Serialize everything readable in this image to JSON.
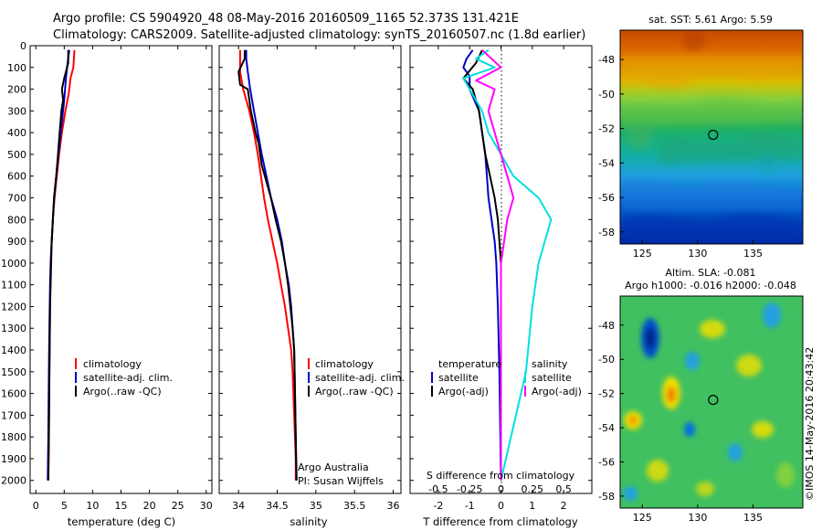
{
  "header": {
    "line1": "Argo profile: CS 5904920_48 08-May-2016 20160509_1165 52.373S 131.421E",
    "line2": "Climatology: CARS2009. Satellite-adjusted climatology: synTS_20160507.nc (1.8d earlier)"
  },
  "colors": {
    "climatology": "#ff0000",
    "satellite": "#0000cc",
    "argo": "#000000",
    "sat_salinity": "#00e0e0",
    "argo_salinity": "#ff00ff"
  },
  "depth_ticks": [
    "0",
    "100",
    "200",
    "300",
    "400",
    "500",
    "600",
    "700",
    "800",
    "900",
    "1000",
    "1100",
    "1200",
    "1300",
    "1400",
    "1500",
    "1600",
    "1700",
    "1800",
    "1900",
    "2000"
  ],
  "chart_data": [
    {
      "type": "line",
      "xlabel": "temperature (deg C)",
      "xlim": [
        -1,
        31
      ],
      "ylim": [
        2060,
        0
      ],
      "x_ticks": [
        "0",
        "5",
        "10",
        "15",
        "20",
        "25",
        "30"
      ],
      "legend": {
        "items": [
          "climatology",
          "satellite-adj. clim.",
          "Argo(..raw -QC)"
        ]
      },
      "series": [
        {
          "name": "climatology",
          "points": [
            [
              6.8,
              20
            ],
            [
              6.6,
              100
            ],
            [
              6.1,
              150
            ],
            [
              5.8,
              220
            ],
            [
              5.2,
              300
            ],
            [
              4.6,
              400
            ],
            [
              4.1,
              500
            ],
            [
              3.7,
              600
            ],
            [
              3.3,
              700
            ],
            [
              3.0,
              800
            ],
            [
              2.8,
              900
            ],
            [
              2.6,
              1000
            ],
            [
              2.5,
              1200
            ],
            [
              2.4,
              1500
            ],
            [
              2.3,
              1800
            ],
            [
              2.2,
              2000
            ]
          ]
        },
        {
          "name": "satellite-adj. clim.",
          "points": [
            [
              5.9,
              20
            ],
            [
              5.6,
              80
            ],
            [
              5.3,
              150
            ],
            [
              5.0,
              250
            ],
            [
              4.6,
              350
            ],
            [
              4.2,
              450
            ],
            [
              3.8,
              550
            ],
            [
              3.4,
              650
            ],
            [
              3.1,
              750
            ],
            [
              2.9,
              850
            ],
            [
              2.7,
              950
            ],
            [
              2.5,
              1100
            ],
            [
              2.4,
              1300
            ],
            [
              2.3,
              1500
            ],
            [
              2.2,
              1800
            ],
            [
              2.1,
              2000
            ]
          ]
        },
        {
          "name": "Argo(..raw -QC)",
          "points": [
            [
              5.7,
              20
            ],
            [
              5.7,
              80
            ],
            [
              5.0,
              150
            ],
            [
              4.6,
              200
            ],
            [
              4.8,
              250
            ],
            [
              4.5,
              300
            ],
            [
              4.2,
              400
            ],
            [
              3.9,
              500
            ],
            [
              3.6,
              600
            ],
            [
              3.2,
              700
            ],
            [
              3.0,
              800
            ],
            [
              2.8,
              900
            ],
            [
              2.7,
              1000
            ],
            [
              2.5,
              1200
            ],
            [
              2.4,
              1500
            ],
            [
              2.3,
              1800
            ],
            [
              2.2,
              2000
            ]
          ]
        }
      ]
    },
    {
      "type": "line",
      "xlabel": "salinity",
      "xlim": [
        33.75,
        36.1
      ],
      "ylim": [
        2060,
        0
      ],
      "x_ticks": [
        "34",
        "34.5",
        "35",
        "35.5",
        "36"
      ],
      "legend": {
        "items": [
          "climatology",
          "satellite-adj. clim.",
          "Argo(..raw -QC)"
        ]
      },
      "annotation": [
        "Argo Australia",
        "PI: Susan Wijffels"
      ],
      "series": [
        {
          "name": "climatology",
          "points": [
            [
              34.02,
              20
            ],
            [
              34.02,
              120
            ],
            [
              34.06,
              200
            ],
            [
              34.14,
              300
            ],
            [
              34.2,
              400
            ],
            [
              34.25,
              500
            ],
            [
              34.29,
              600
            ],
            [
              34.33,
              700
            ],
            [
              34.38,
              800
            ],
            [
              34.44,
              900
            ],
            [
              34.5,
              1000
            ],
            [
              34.55,
              1100
            ],
            [
              34.6,
              1200
            ],
            [
              34.64,
              1300
            ],
            [
              34.68,
              1400
            ],
            [
              34.7,
              1500
            ],
            [
              34.72,
              1700
            ],
            [
              34.74,
              1900
            ],
            [
              34.74,
              2000
            ]
          ]
        },
        {
          "name": "satellite-adj. clim.",
          "points": [
            [
              34.1,
              20
            ],
            [
              34.1,
              60
            ],
            [
              34.12,
              120
            ],
            [
              34.15,
              200
            ],
            [
              34.2,
              300
            ],
            [
              34.25,
              400
            ],
            [
              34.3,
              500
            ],
            [
              34.36,
              600
            ],
            [
              34.42,
              700
            ],
            [
              34.5,
              800
            ],
            [
              34.56,
              900
            ],
            [
              34.6,
              1000
            ],
            [
              34.65,
              1100
            ],
            [
              34.68,
              1200
            ],
            [
              34.7,
              1300
            ],
            [
              34.72,
              1400
            ],
            [
              34.73,
              1600
            ],
            [
              34.74,
              1800
            ],
            [
              34.75,
              2000
            ]
          ]
        },
        {
          "name": "Argo(..raw -QC)",
          "points": [
            [
              34.08,
              20
            ],
            [
              34.08,
              60
            ],
            [
              34.0,
              120
            ],
            [
              34.02,
              180
            ],
            [
              34.12,
              200
            ],
            [
              34.16,
              300
            ],
            [
              34.22,
              400
            ],
            [
              34.26,
              450
            ],
            [
              34.28,
              500
            ],
            [
              34.3,
              550
            ],
            [
              34.34,
              600
            ],
            [
              34.38,
              650
            ],
            [
              34.42,
              700
            ],
            [
              34.48,
              800
            ],
            [
              34.55,
              900
            ],
            [
              34.6,
              1000
            ],
            [
              34.64,
              1100
            ],
            [
              34.67,
              1200
            ],
            [
              34.7,
              1300
            ],
            [
              34.72,
              1400
            ],
            [
              34.73,
              1600
            ],
            [
              34.74,
              1800
            ],
            [
              34.75,
              2000
            ]
          ]
        }
      ]
    },
    {
      "type": "line",
      "xlabel": "T difference from climatology",
      "top_label": "S difference from climatology",
      "xlim": [
        -2.9,
        2.9
      ],
      "ylim": [
        2060,
        0
      ],
      "x_ticks": [
        "-2",
        "-1",
        "0",
        "1",
        "2"
      ],
      "top_ticks": [
        "-0.5",
        "-0.25",
        "0",
        "0.25",
        "0.5"
      ],
      "legend": {
        "temperature_title": "temperature",
        "salinity_title": "salinity",
        "items": [
          "satellite",
          "Argo(-adj)",
          "satellite",
          "Argo(-adj)"
        ]
      },
      "series": [
        {
          "name": "satellite",
          "points": [
            [
              -0.9,
              20
            ],
            [
              -1.1,
              60
            ],
            [
              -1.2,
              100
            ],
            [
              -1.0,
              140
            ],
            [
              -1.0,
              200
            ],
            [
              -0.7,
              300
            ],
            [
              -0.6,
              400
            ],
            [
              -0.5,
              500
            ],
            [
              -0.45,
              600
            ],
            [
              -0.4,
              700
            ],
            [
              -0.3,
              800
            ],
            [
              -0.2,
              900
            ],
            [
              -0.15,
              1000
            ],
            [
              -0.1,
              1200
            ],
            [
              -0.05,
              1500
            ],
            [
              0.0,
              2000
            ]
          ]
        },
        {
          "name": "Argo(-adj)",
          "points": [
            [
              -0.6,
              20
            ],
            [
              -0.8,
              80
            ],
            [
              -1.2,
              150
            ],
            [
              -0.9,
              200
            ],
            [
              -0.8,
              250
            ],
            [
              -0.7,
              300
            ],
            [
              -0.6,
              400
            ],
            [
              -0.5,
              500
            ],
            [
              -0.35,
              600
            ],
            [
              -0.2,
              700
            ],
            [
              -0.1,
              800
            ],
            [
              -0.05,
              900
            ],
            [
              0.0,
              1000
            ],
            [
              0.0,
              1500
            ],
            [
              0.0,
              2000
            ]
          ]
        },
        {
          "name": "satellite",
          "points": [
            [
              -0.1,
              20
            ],
            [
              -0.2,
              60
            ],
            [
              -0.05,
              100
            ],
            [
              -0.3,
              150
            ],
            [
              -0.25,
              200
            ],
            [
              -0.15,
              300
            ],
            [
              -0.1,
              400
            ],
            [
              0.0,
              500
            ],
            [
              0.1,
              600
            ],
            [
              0.3,
              700
            ],
            [
              0.4,
              800
            ],
            [
              0.35,
              900
            ],
            [
              0.3,
              1000
            ],
            [
              0.25,
              1200
            ],
            [
              0.2,
              1500
            ],
            [
              0.0,
              2000
            ]
          ]
        },
        {
          "name": "Argo(-adj)",
          "points": [
            [
              -0.15,
              20
            ],
            [
              0.0,
              100
            ],
            [
              -0.2,
              160
            ],
            [
              -0.05,
              200
            ],
            [
              -0.1,
              300
            ],
            [
              -0.05,
              400
            ],
            [
              0.0,
              500
            ],
            [
              0.05,
              600
            ],
            [
              0.1,
              700
            ],
            [
              0.05,
              800
            ],
            [
              0.0,
              1000
            ],
            [
              0.0,
              2000
            ]
          ]
        }
      ]
    },
    {
      "type": "heatmap",
      "title": "sat. SST: 5.61  Argo: 5.59",
      "x_ticks": [
        "125",
        "130",
        "135"
      ],
      "y_ticks": [
        "-48",
        "-50",
        "-52",
        "-54",
        "-56",
        "-58"
      ],
      "xlim": [
        123,
        139.5
      ],
      "ylim": [
        -58.7,
        -46.3
      ],
      "marker": [
        131.4,
        -52.37
      ]
    },
    {
      "type": "heatmap",
      "title_line1": "Altim. SLA: -0.081",
      "title_line2": "Argo h1000: -0.016 h2000: -0.048",
      "x_ticks": [
        "125",
        "130",
        "135"
      ],
      "y_ticks": [
        "-48",
        "-50",
        "-52",
        "-54",
        "-56",
        "-58"
      ],
      "xlim": [
        123,
        139.5
      ],
      "ylim": [
        -58.7,
        -46.3
      ],
      "marker": [
        131.4,
        -52.37
      ],
      "credit": "©IMOS 14-May-2016 20:43:42"
    }
  ]
}
